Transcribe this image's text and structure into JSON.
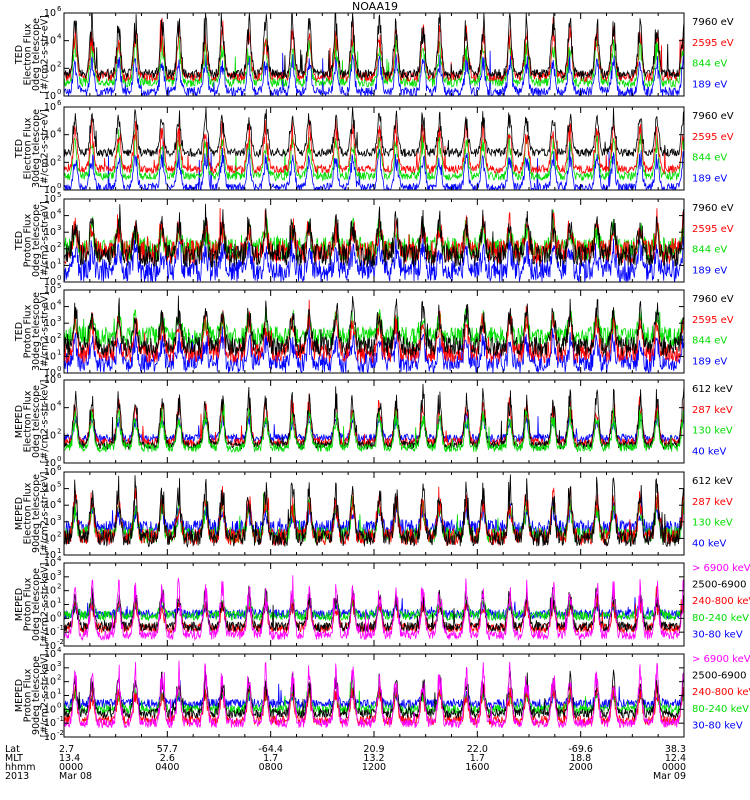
{
  "title": "NOAA19",
  "colors": {
    "black": "#000000",
    "blue": "#0000ff",
    "green": "#00dd00",
    "red": "#ff0000",
    "magenta": "#ff00ff"
  },
  "chart_data": [
    {
      "type": "line",
      "instrument": "TED",
      "quantity": "Electron Flux",
      "telescope": "0deg telescope",
      "units": "[#/cm2-s-str-eV]",
      "ylim": [
        1,
        1000000
      ],
      "yscale": "log",
      "ytick_exponents": [
        0,
        2,
        4,
        6
      ],
      "series": [
        {
          "name": "7960 eV",
          "color": "#000000"
        },
        {
          "name": "2595 eV",
          "color": "#ff0000"
        },
        {
          "name": "844 eV",
          "color": "#00dd00"
        },
        {
          "name": "189 eV",
          "color": "#0000ff"
        }
      ],
      "plot_order": [
        3,
        2,
        1,
        0
      ],
      "base_log": [
        1.6,
        1.4,
        1.0,
        0.3
      ],
      "peak_log": 5.8,
      "noise": 0.35,
      "seed": 11
    },
    {
      "type": "line",
      "instrument": "TED",
      "quantity": "Electron Flux",
      "telescope": "30deg telescope",
      "units": "[#/cm2-s-str-eV]",
      "ylim": [
        1,
        1000000
      ],
      "yscale": "log",
      "ytick_exponents": [
        0,
        2,
        4,
        6
      ],
      "series": [
        {
          "name": "7960 eV",
          "color": "#000000"
        },
        {
          "name": "2595 eV",
          "color": "#ff0000"
        },
        {
          "name": "844 eV",
          "color": "#00dd00"
        },
        {
          "name": "189 eV",
          "color": "#0000ff"
        }
      ],
      "plot_order": [
        3,
        2,
        1,
        0
      ],
      "base_log": [
        2.7,
        1.5,
        1.0,
        0.2
      ],
      "peak_log": 5.6,
      "noise": 0.3,
      "seed": 23
    },
    {
      "type": "line",
      "instrument": "TED",
      "quantity": "Proton Flux",
      "telescope": "0deg telescope",
      "units": "[#/cm2-s-str-eV]",
      "ylim": [
        1,
        100000
      ],
      "yscale": "log",
      "ytick_exponents": [
        0,
        1,
        2,
        3,
        4,
        5
      ],
      "series": [
        {
          "name": "7960 eV",
          "color": "#000000"
        },
        {
          "name": "2595 eV",
          "color": "#ff0000"
        },
        {
          "name": "844 eV",
          "color": "#00dd00"
        },
        {
          "name": "189 eV",
          "color": "#0000ff"
        }
      ],
      "plot_order": [
        3,
        2,
        1,
        0
      ],
      "base_log": [
        1.6,
        1.8,
        2.0,
        0.7
      ],
      "peak_log": 4.0,
      "noise": 0.7,
      "seed": 37
    },
    {
      "type": "line",
      "instrument": "TED",
      "quantity": "Proton Flux",
      "telescope": "30deg telescope",
      "units": "[#/cm2-s-str-eV]",
      "ylim": [
        1,
        100000
      ],
      "yscale": "log",
      "ytick_exponents": [
        0,
        1,
        2,
        3,
        4,
        5
      ],
      "series": [
        {
          "name": "7960 eV",
          "color": "#000000"
        },
        {
          "name": "2595 eV",
          "color": "#ff0000"
        },
        {
          "name": "844 eV",
          "color": "#00dd00"
        },
        {
          "name": "189 eV",
          "color": "#0000ff"
        }
      ],
      "plot_order": [
        3,
        2,
        1,
        0
      ],
      "base_log": [
        1.6,
        1.2,
        2.2,
        0.6
      ],
      "peak_log": 4.0,
      "noise": 0.6,
      "seed": 41
    },
    {
      "type": "line",
      "instrument": "MEPED",
      "quantity": "Electron Flux",
      "telescope": "0deg telescope",
      "units": "[#/cm2-s-str-keV]",
      "ylim": [
        1,
        1000000
      ],
      "yscale": "log",
      "ytick_exponents": [
        0,
        2,
        4,
        6
      ],
      "series": [
        {
          "name": "612 keV",
          "color": "#000000"
        },
        {
          "name": "287 keV",
          "color": "#ff0000"
        },
        {
          "name": "130 keV",
          "color": "#00dd00"
        },
        {
          "name": "40 keV",
          "color": "#0000ff"
        }
      ],
      "plot_order": [
        3,
        1,
        0,
        2
      ],
      "base_log": [
        1.3,
        1.5,
        1.1,
        1.8
      ],
      "peak_log": 5.2,
      "noise": 0.3,
      "seed": 53
    },
    {
      "type": "line",
      "instrument": "MEPED",
      "quantity": "Electron Flux",
      "telescope": "90deg telescope",
      "units": "[#/cm2-s-str-keV]",
      "ylim": [
        10,
        1000000
      ],
      "yscale": "log",
      "ytick_exponents": [
        1,
        2,
        3,
        4,
        5,
        6
      ],
      "series": [
        {
          "name": "612 keV",
          "color": "#000000"
        },
        {
          "name": "287 keV",
          "color": "#ff0000"
        },
        {
          "name": "130 keV",
          "color": "#00dd00"
        },
        {
          "name": "40 keV",
          "color": "#0000ff"
        }
      ],
      "plot_order": [
        3,
        2,
        1,
        0
      ],
      "base_log": [
        2.0,
        2.1,
        2.2,
        2.6
      ],
      "peak_log": 5.3,
      "noise": 0.5,
      "seed": 67
    },
    {
      "type": "line",
      "instrument": "MEPED",
      "quantity": "Proton Flux",
      "telescope": "0deg telescope",
      "units": "[#/cm2-s-str-keV]",
      "ylim": [
        0.01,
        10000
      ],
      "yscale": "log",
      "ytick_exponents": [
        -2,
        -1,
        0,
        1,
        2,
        3,
        4
      ],
      "series": [
        {
          "name": "> 6900 keV",
          "color": "#ff00ff"
        },
        {
          "name": "2500-6900",
          "color": "#000000"
        },
        {
          "name": "240-800 keV",
          "color": "#ff0000"
        },
        {
          "name": "80-240 keV",
          "color": "#00dd00"
        },
        {
          "name": "30-80 keV",
          "color": "#0000ff"
        }
      ],
      "plot_order": [
        4,
        3,
        2,
        1,
        0
      ],
      "base_log": [
        -1.2,
        -0.6,
        -0.7,
        0.2,
        0.3
      ],
      "peak_log": 2.6,
      "noise": 0.35,
      "seed": 79
    },
    {
      "type": "line",
      "instrument": "MEPED",
      "quantity": "Proton Flux",
      "telescope": "90deg telescope",
      "units": "[#/cm2-s-str-keV]",
      "ylim": [
        0.01,
        10000
      ],
      "yscale": "log",
      "ytick_exponents": [
        -2,
        -1,
        0,
        1,
        2,
        3,
        4
      ],
      "series": [
        {
          "name": "> 6900 keV",
          "color": "#ff00ff"
        },
        {
          "name": "2500-6900",
          "color": "#000000"
        },
        {
          "name": "240-800 keV",
          "color": "#ff0000"
        },
        {
          "name": "80-240 keV",
          "color": "#00dd00"
        },
        {
          "name": "30-80 keV",
          "color": "#0000ff"
        }
      ],
      "plot_order": [
        4,
        3,
        2,
        1,
        0
      ],
      "base_log": [
        -1.0,
        -0.3,
        -0.8,
        0.0,
        0.4
      ],
      "peak_log": 3.0,
      "noise": 0.35,
      "seed": 97
    }
  ],
  "x_axis": {
    "row_labels": [
      "Lat",
      "MLT",
      "hhmm",
      "2013"
    ],
    "columns": [
      {
        "lat": "2.7",
        "mlt": "13.4",
        "hhmm": "0000",
        "date": "Mar 08"
      },
      {
        "lat": "57.7",
        "mlt": "2.6",
        "hhmm": "0400",
        "date": ""
      },
      {
        "lat": "-64.4",
        "mlt": "1.7",
        "hhmm": "0800",
        "date": ""
      },
      {
        "lat": "20.9",
        "mlt": "13.2",
        "hhmm": "1200",
        "date": ""
      },
      {
        "lat": "22.0",
        "mlt": "1.7",
        "hhmm": "1600",
        "date": ""
      },
      {
        "lat": "-69.6",
        "mlt": "18.8",
        "hhmm": "2000",
        "date": ""
      },
      {
        "lat": "38.3",
        "mlt": "12.4",
        "hhmm": "0000",
        "date": "Mar 09"
      }
    ]
  }
}
